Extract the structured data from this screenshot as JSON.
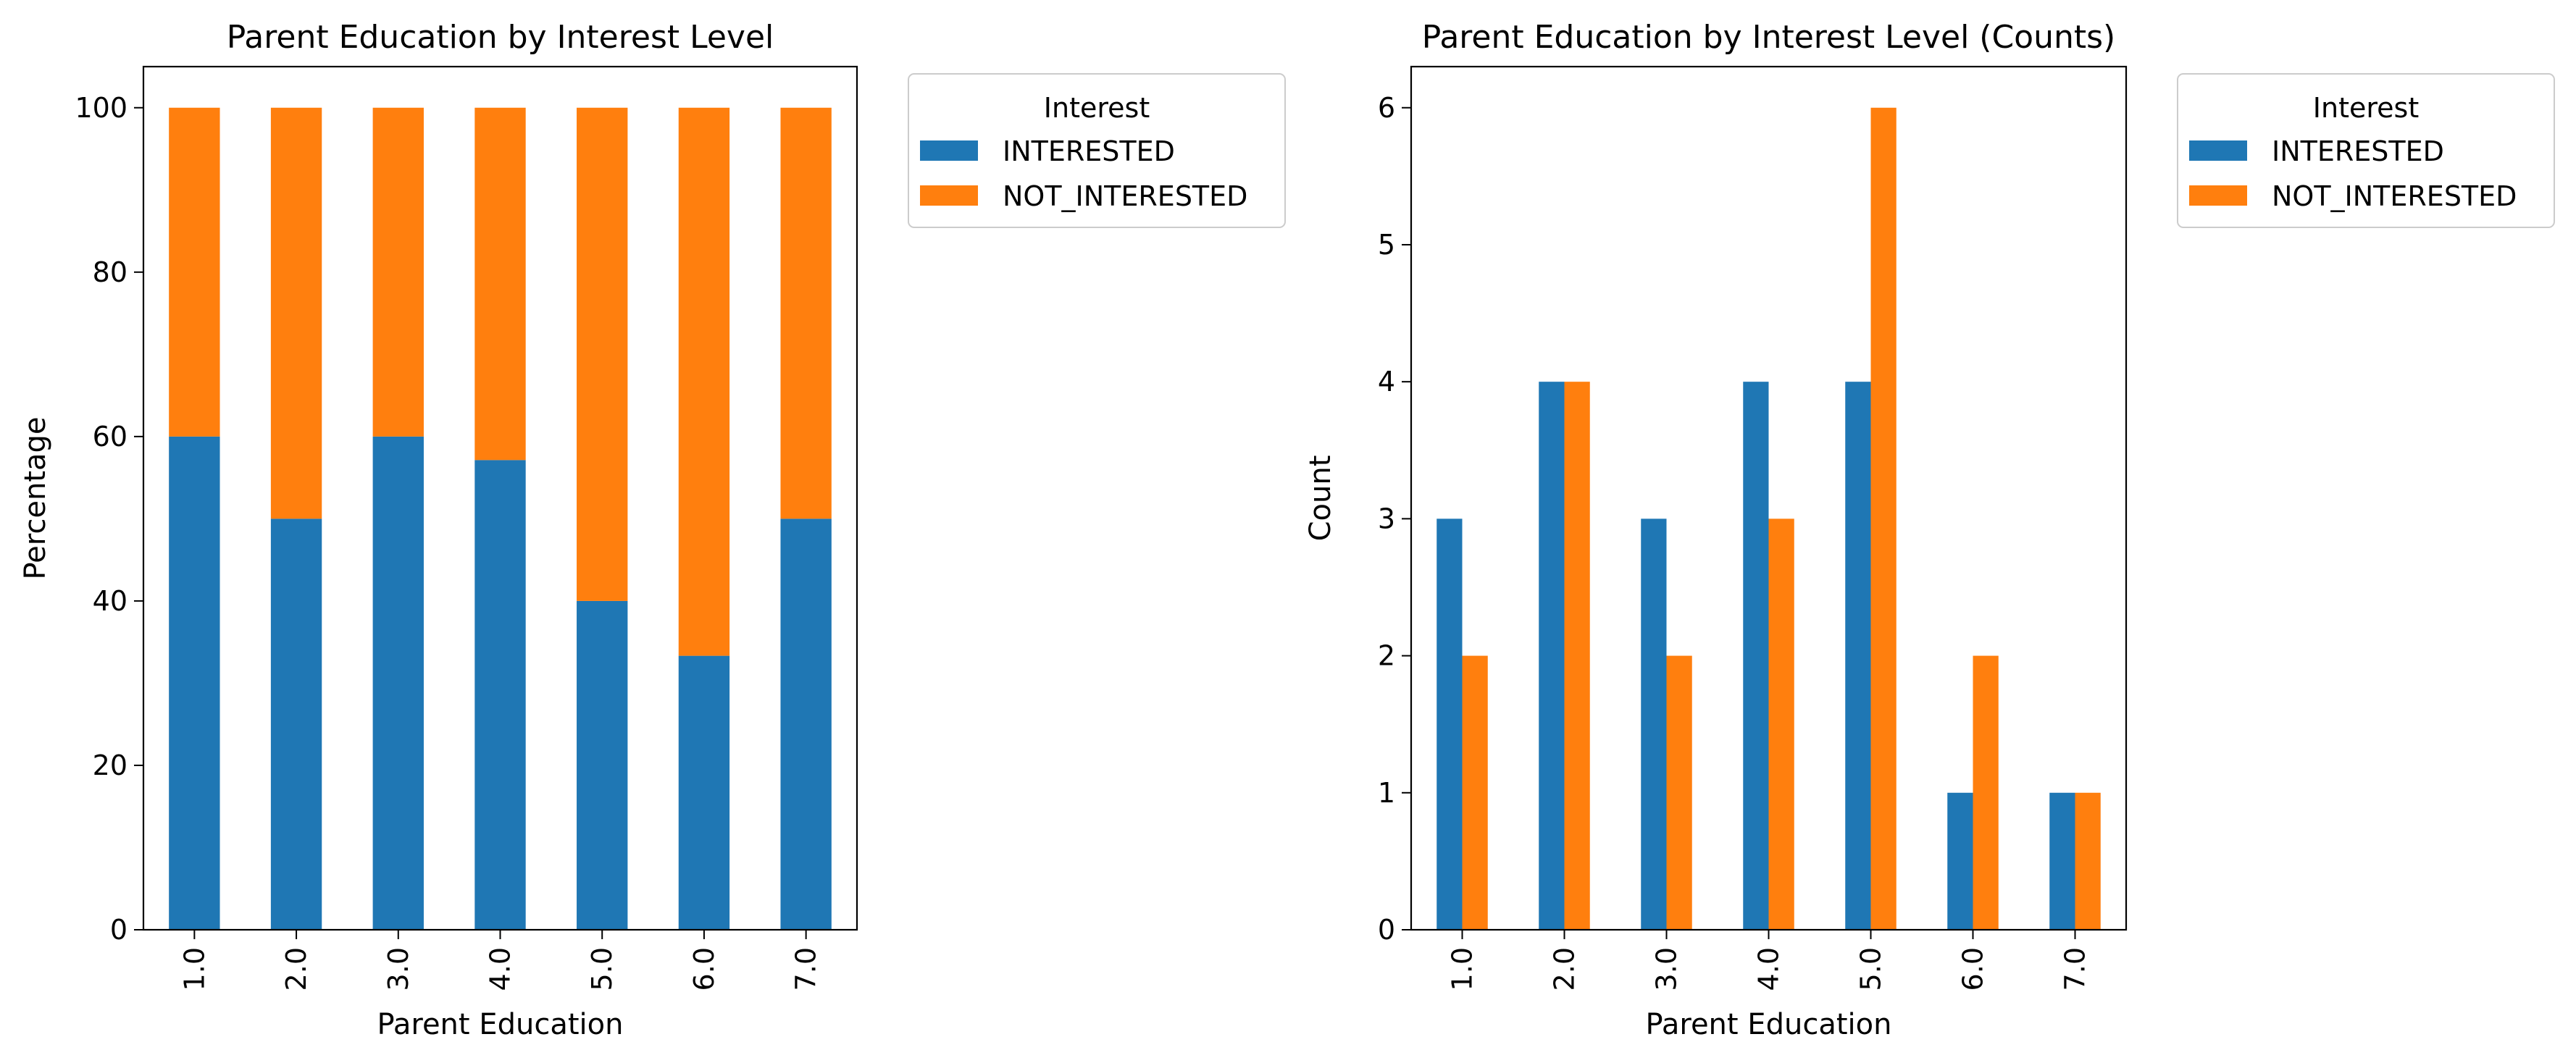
{
  "chart_data": [
    {
      "type": "bar",
      "stacked": true,
      "title": "Parent Education by Interest Level",
      "xlabel": "Parent Education",
      "ylabel": "Percentage",
      "categories": [
        "1.0",
        "2.0",
        "3.0",
        "4.0",
        "5.0",
        "6.0",
        "7.0"
      ],
      "series": [
        {
          "name": "INTERESTED",
          "color": "#1f77b4",
          "values": [
            60.0,
            50.0,
            60.0,
            57.14,
            40.0,
            33.33,
            50.0
          ]
        },
        {
          "name": "NOT_INTERESTED",
          "color": "#ff7f0e",
          "values": [
            40.0,
            50.0,
            40.0,
            42.86,
            60.0,
            66.67,
            50.0
          ]
        }
      ],
      "ylim": [
        0,
        105
      ],
      "yticks": [
        0,
        20,
        40,
        60,
        80,
        100
      ],
      "legend": {
        "title": "Interest",
        "placement": "outside upper right"
      },
      "grid": false
    },
    {
      "type": "bar",
      "stacked": false,
      "title": "Parent Education by Interest Level (Counts)",
      "xlabel": "Parent Education",
      "ylabel": "Count",
      "categories": [
        "1.0",
        "2.0",
        "3.0",
        "4.0",
        "5.0",
        "6.0",
        "7.0"
      ],
      "series": [
        {
          "name": "INTERESTED",
          "color": "#1f77b4",
          "values": [
            3,
            4,
            3,
            4,
            4,
            1,
            1
          ]
        },
        {
          "name": "NOT_INTERESTED",
          "color": "#ff7f0e",
          "values": [
            2,
            4,
            2,
            3,
            6,
            2,
            1
          ]
        }
      ],
      "ylim": [
        0,
        6.3
      ],
      "yticks": [
        0,
        1,
        2,
        3,
        4,
        5,
        6
      ],
      "legend": {
        "title": "Interest",
        "placement": "outside upper right"
      },
      "grid": false
    }
  ]
}
